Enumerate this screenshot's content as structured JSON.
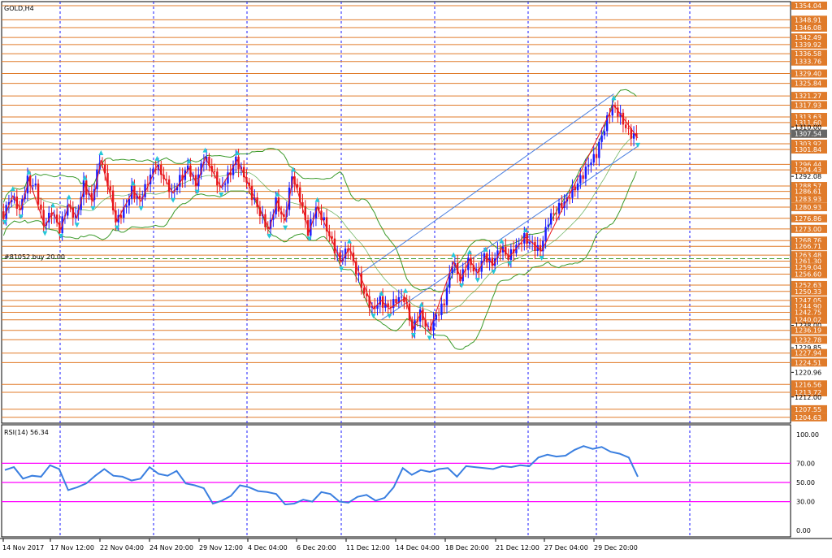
{
  "symbol_label": "GOLD,H4",
  "order_label": "#81052 buy 20.00",
  "rsi_label": "RSI(14) 56.34",
  "colors": {
    "level_line": "#e07b2a",
    "price_box": "#e07b2a",
    "grid": "#1a1aff",
    "bull_candle": "#1a1aff",
    "bear_candle": "#e8161c",
    "zigzag": "#e8161c",
    "band": "#3a9a2a",
    "channel": "#4a7fe0",
    "fractal": "#25c8d8",
    "rsi_line": "#3a7fe0",
    "rsi_level": "#ff00ff",
    "order_line": "#3a9a2a"
  },
  "chart_data": [
    {
      "type": "candlestick",
      "title": "GOLD,H4",
      "price_axis_ticks": [
        "1354.04",
        "1348.91",
        "1346.08",
        "1342.49",
        "1339.92",
        "1336.58",
        "1333.76",
        "1329.40",
        "1325.84",
        "1321.27",
        "1317.93",
        "1313.63",
        "1311.60",
        "1310.00",
        "1307.54",
        "1303.92",
        "1301.84",
        "1296.44",
        "1294.43",
        "1292.08",
        "1288.57",
        "1286.61",
        "1283.93",
        "1280.93",
        "1276.86",
        "1273.00",
        "1268.76",
        "1266.71",
        "1263.48",
        "1261.30",
        "1259.04",
        "1256.60",
        "1252.63",
        "1250.33",
        "1247.05",
        "1244.90",
        "1242.75",
        "1240.02",
        "1238.00",
        "1236.19",
        "1232.78",
        "1229.85",
        "1227.94",
        "1224.51",
        "1220.96",
        "1216.56",
        "1213.72",
        "1212.00",
        "1207.55",
        "1204.63"
      ],
      "time_axis_labels": [
        "14 Nov 2017",
        "17 Nov 12:00",
        "22 Nov 04:00",
        "24 Nov 20:00",
        "29 Nov 12:00",
        "4 Dec 04:00",
        "6 Dec 20:00",
        "11 Dec 12:00",
        "14 Dec 04:00",
        "18 Dec 20:00",
        "21 Dec 12:00",
        "27 Dec 04:00",
        "29 Dec 20:00"
      ],
      "ylim": [
        1202.5,
        1355.5
      ],
      "last_price": 1307.54,
      "order_price": 1262.2,
      "price_path": [
        1278,
        1285,
        1280,
        1291,
        1288,
        1274,
        1279,
        1273,
        1282,
        1277,
        1289,
        1283,
        1298,
        1290,
        1276,
        1280,
        1287,
        1283,
        1290,
        1296,
        1292,
        1286,
        1291,
        1295,
        1289,
        1299,
        1295,
        1288,
        1292,
        1298,
        1292,
        1285,
        1279,
        1273,
        1283,
        1276,
        1292,
        1284,
        1272,
        1281,
        1276,
        1268,
        1261,
        1266,
        1258,
        1250,
        1244,
        1247,
        1244,
        1247,
        1248,
        1237,
        1243,
        1236,
        1241,
        1246,
        1261,
        1255,
        1262,
        1257,
        1263,
        1260,
        1266,
        1263,
        1267,
        1270,
        1267,
        1265,
        1276,
        1280,
        1283,
        1287,
        1291,
        1296,
        1300,
        1310,
        1318,
        1314,
        1308,
        1306
      ]
    },
    {
      "type": "line",
      "title": "RSI(14) 56.34",
      "ylim": [
        0,
        100
      ],
      "y_ticks": [
        "100.00",
        "70.00",
        "50.00",
        "30.00",
        "0.00"
      ],
      "levels": [
        70,
        50,
        30
      ],
      "values": [
        63,
        66,
        54,
        57,
        56,
        68,
        64,
        42,
        45,
        49,
        57,
        64,
        57,
        56,
        52,
        54,
        66,
        59,
        57,
        62,
        49,
        47,
        44,
        28,
        31,
        36,
        47,
        45,
        41,
        40,
        38,
        27,
        28,
        32,
        30,
        40,
        38,
        30,
        29,
        35,
        37,
        31,
        34,
        45,
        65,
        58,
        63,
        61,
        64,
        65,
        56,
        67,
        66,
        65,
        64,
        67,
        66,
        68,
        67,
        76,
        79,
        77,
        78,
        84,
        88,
        85,
        87,
        82,
        80,
        76,
        56
      ]
    }
  ]
}
